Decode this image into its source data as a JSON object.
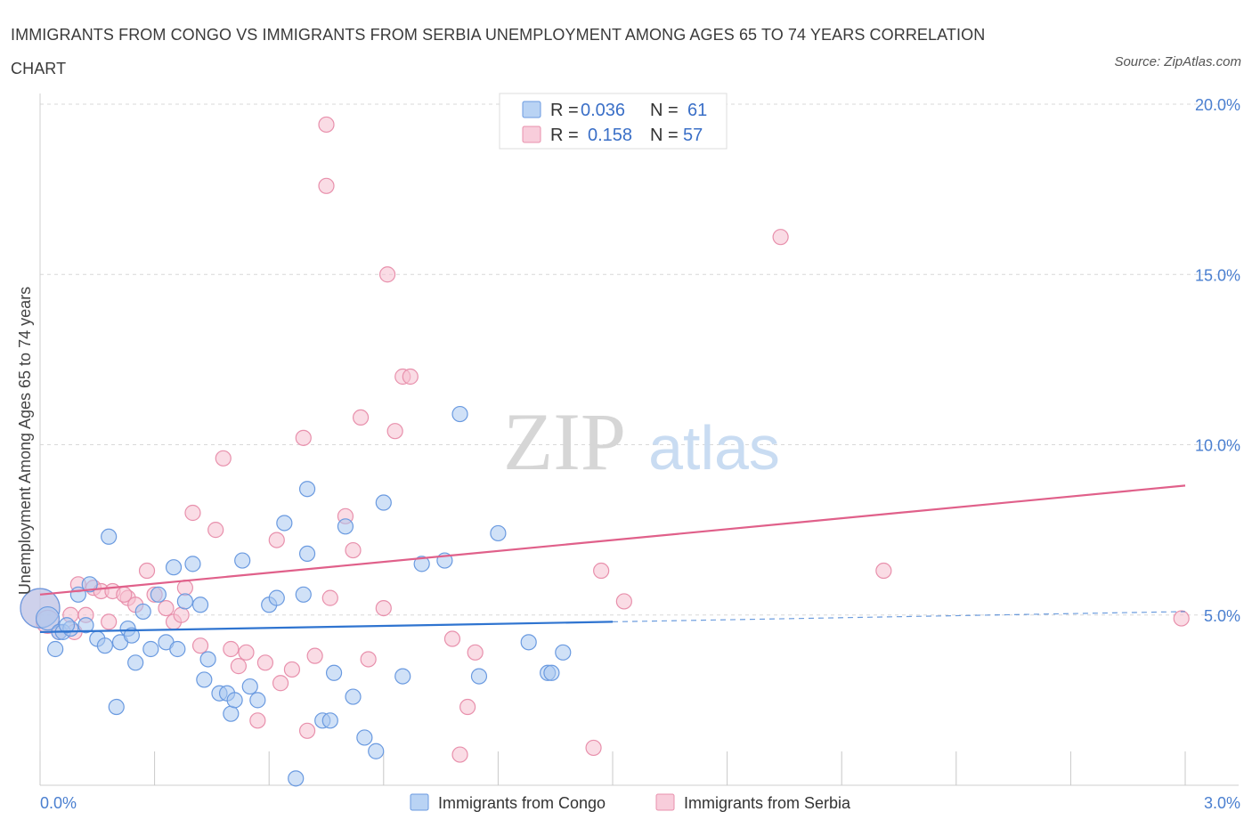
{
  "title": "IMMIGRANTS FROM CONGO VS IMMIGRANTS FROM SERBIA UNEMPLOYMENT AMONG AGES 65 TO 74 YEARS CORRELATION CHART",
  "source": "Source: ZipAtlas.com",
  "watermark": {
    "zip": "ZIP",
    "atlas": "atlas"
  },
  "colors": {
    "congo_fill": "#a9c8f0",
    "congo_stroke": "#6a9ae0",
    "congo_line": "#2f74d0",
    "serbia_fill": "#f6c0d0",
    "serbia_stroke": "#e890ac",
    "serbia_line": "#e0608a",
    "grid": "#d8d8d8",
    "tick_text": "#4a7fd0"
  },
  "legend": {
    "rows": [
      {
        "r_label": "R =",
        "r_value": "0.036",
        "n_label": "N =",
        "n_value": "61",
        "series": "congo"
      },
      {
        "r_label": "R =",
        "r_value": "0.158",
        "n_label": "N =",
        "n_value": "57",
        "series": "serbia"
      }
    ]
  },
  "chart_data": {
    "type": "scatter",
    "title": "IMMIGRANTS FROM CONGO VS IMMIGRANTS FROM SERBIA UNEMPLOYMENT AMONG AGES 65 TO 74 YEARS CORRELATION CHART",
    "xlabel": "",
    "ylabel": "Unemployment Among Ages 65 to 74 years",
    "xlim": [
      0,
      3.0
    ],
    "ylim": [
      0,
      20.0
    ],
    "x_tick_labels": [
      {
        "value": 0,
        "label": "0.0%"
      },
      {
        "value": 3.0,
        "label": "3.0%"
      }
    ],
    "y_tick_labels": [
      {
        "value": 5,
        "label": "5.0%"
      },
      {
        "value": 10,
        "label": "10.0%"
      },
      {
        "value": 15,
        "label": "15.0%"
      },
      {
        "value": 20,
        "label": "20.0%"
      }
    ],
    "series": [
      {
        "name": "Immigrants from Congo",
        "key": "congo",
        "points": [
          [
            0.0,
            5.2,
            3
          ],
          [
            0.02,
            4.9,
            2
          ],
          [
            0.04,
            4.0,
            1
          ],
          [
            0.05,
            4.5,
            1
          ],
          [
            0.06,
            4.5,
            1
          ],
          [
            0.08,
            4.6,
            1
          ],
          [
            0.1,
            5.6,
            1
          ],
          [
            0.12,
            4.7,
            1
          ],
          [
            0.13,
            5.9,
            1
          ],
          [
            0.15,
            4.3,
            1
          ],
          [
            0.17,
            4.1,
            1
          ],
          [
            0.18,
            7.3,
            1
          ],
          [
            0.2,
            2.3,
            1
          ],
          [
            0.21,
            4.2,
            1
          ],
          [
            0.23,
            4.6,
            1
          ],
          [
            0.24,
            4.4,
            1
          ],
          [
            0.25,
            3.6,
            1
          ],
          [
            0.27,
            5.1,
            1
          ],
          [
            0.29,
            4.0,
            1
          ],
          [
            0.31,
            5.6,
            1
          ],
          [
            0.33,
            4.2,
            1
          ],
          [
            0.35,
            6.4,
            1
          ],
          [
            0.36,
            4.0,
            1
          ],
          [
            0.38,
            5.4,
            1
          ],
          [
            0.4,
            6.5,
            1
          ],
          [
            0.42,
            5.3,
            1
          ],
          [
            0.43,
            3.1,
            1
          ],
          [
            0.44,
            3.7,
            1
          ],
          [
            0.47,
            2.7,
            1
          ],
          [
            0.49,
            2.7,
            1
          ],
          [
            0.5,
            2.1,
            1
          ],
          [
            0.51,
            2.5,
            1
          ],
          [
            0.53,
            6.6,
            1
          ],
          [
            0.55,
            2.9,
            1
          ],
          [
            0.57,
            2.5,
            1
          ],
          [
            0.6,
            5.3,
            1
          ],
          [
            0.62,
            5.5,
            1
          ],
          [
            0.64,
            7.7,
            1
          ],
          [
            0.67,
            0.2,
            1
          ],
          [
            0.69,
            5.6,
            1
          ],
          [
            0.7,
            6.8,
            1
          ],
          [
            0.7,
            8.7,
            1
          ],
          [
            0.74,
            1.9,
            1
          ],
          [
            0.76,
            1.9,
            1
          ],
          [
            0.77,
            3.3,
            1
          ],
          [
            0.8,
            7.6,
            1
          ],
          [
            0.82,
            2.6,
            1
          ],
          [
            0.85,
            1.4,
            1
          ],
          [
            0.88,
            1.0,
            1
          ],
          [
            0.9,
            8.3,
            1
          ],
          [
            0.95,
            3.2,
            1
          ],
          [
            1.0,
            6.5,
            1
          ],
          [
            1.06,
            6.6,
            1
          ],
          [
            1.1,
            10.9,
            1
          ],
          [
            1.15,
            3.2,
            1
          ],
          [
            1.2,
            7.4,
            1
          ],
          [
            1.28,
            4.2,
            1
          ],
          [
            1.33,
            3.3,
            1
          ],
          [
            1.34,
            3.3,
            1
          ],
          [
            1.37,
            3.9,
            1
          ],
          [
            0.07,
            4.7,
            1
          ]
        ],
        "trend": {
          "x0": 0.0,
          "y0": 4.5,
          "x1": 1.5,
          "y1": 4.8,
          "dashed_x1": 3.0,
          "dashed_y1": 5.1
        }
      },
      {
        "name": "Immigrants from Serbia",
        "key": "serbia",
        "points": [
          [
            0.0,
            5.2,
            3
          ],
          [
            0.02,
            4.8,
            2
          ],
          [
            0.05,
            4.5,
            1
          ],
          [
            0.08,
            5.0,
            1
          ],
          [
            0.12,
            5.0,
            1
          ],
          [
            0.14,
            5.8,
            1
          ],
          [
            0.16,
            5.7,
            1
          ],
          [
            0.18,
            4.8,
            1
          ],
          [
            0.19,
            5.7,
            1
          ],
          [
            0.23,
            5.5,
            1
          ],
          [
            0.25,
            5.3,
            1
          ],
          [
            0.28,
            6.3,
            1
          ],
          [
            0.3,
            5.6,
            1
          ],
          [
            0.33,
            5.2,
            1
          ],
          [
            0.35,
            4.8,
            1
          ],
          [
            0.37,
            5.0,
            1
          ],
          [
            0.38,
            5.8,
            1
          ],
          [
            0.4,
            8.0,
            1
          ],
          [
            0.42,
            4.1,
            1
          ],
          [
            0.46,
            7.5,
            1
          ],
          [
            0.48,
            9.6,
            1
          ],
          [
            0.5,
            4.0,
            1
          ],
          [
            0.52,
            3.5,
            1
          ],
          [
            0.54,
            3.9,
            1
          ],
          [
            0.57,
            1.9,
            1
          ],
          [
            0.59,
            3.6,
            1
          ],
          [
            0.62,
            7.2,
            1
          ],
          [
            0.63,
            3.0,
            1
          ],
          [
            0.66,
            3.4,
            1
          ],
          [
            0.69,
            10.2,
            1
          ],
          [
            0.7,
            1.6,
            1
          ],
          [
            0.72,
            3.8,
            1
          ],
          [
            0.75,
            19.4,
            1
          ],
          [
            0.75,
            17.6,
            1
          ],
          [
            0.76,
            5.5,
            1
          ],
          [
            0.8,
            7.9,
            1
          ],
          [
            0.82,
            6.9,
            1
          ],
          [
            0.84,
            10.8,
            1
          ],
          [
            0.86,
            3.7,
            1
          ],
          [
            0.9,
            5.2,
            1
          ],
          [
            0.91,
            15.0,
            1
          ],
          [
            0.93,
            10.4,
            1
          ],
          [
            0.95,
            12.0,
            1
          ],
          [
            0.97,
            12.0,
            1
          ],
          [
            1.08,
            4.3,
            1
          ],
          [
            1.1,
            0.9,
            1
          ],
          [
            1.12,
            2.3,
            1
          ],
          [
            1.14,
            3.9,
            1
          ],
          [
            1.45,
            1.1,
            1
          ],
          [
            1.47,
            6.3,
            1
          ],
          [
            1.53,
            5.4,
            1
          ],
          [
            1.94,
            16.1,
            1
          ],
          [
            2.21,
            6.3,
            1
          ],
          [
            2.99,
            4.9,
            1
          ],
          [
            0.09,
            4.5,
            1
          ],
          [
            0.1,
            5.9,
            1
          ],
          [
            0.22,
            5.6,
            1
          ]
        ],
        "trend": {
          "x0": 0.0,
          "y0": 5.6,
          "x1": 3.0,
          "y1": 8.8
        }
      }
    ]
  },
  "bottom_legend": [
    {
      "label": "Immigrants from Congo",
      "series": "congo"
    },
    {
      "label": "Immigrants from Serbia",
      "series": "serbia"
    }
  ]
}
